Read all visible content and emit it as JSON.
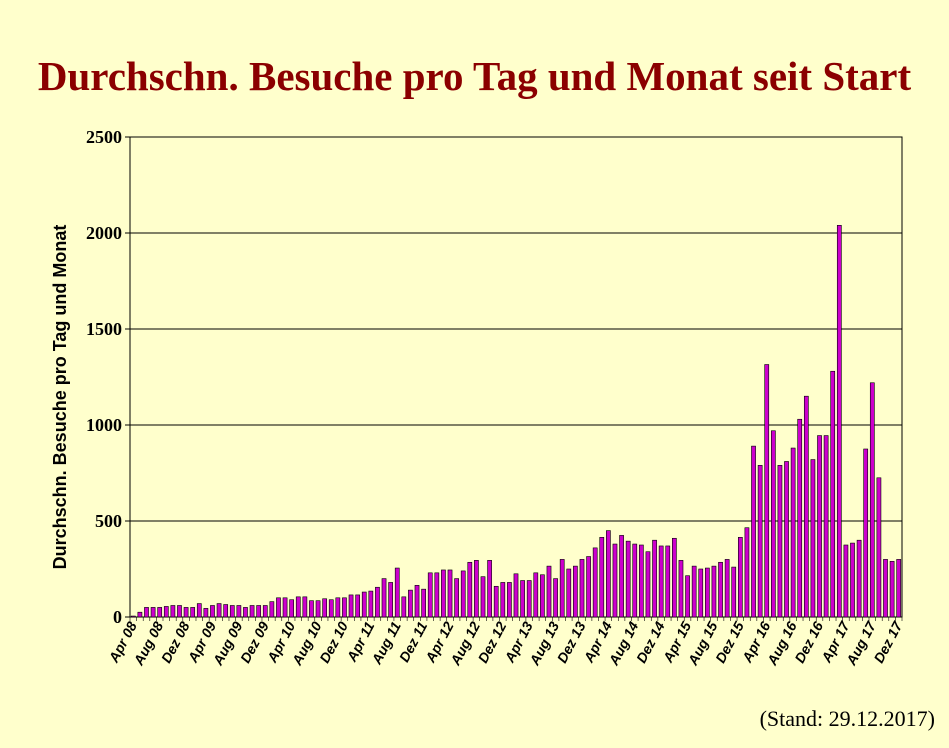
{
  "title": "Durchschn. Besuche pro Tag und Monat seit Start",
  "footnote": "(Stand: 29.12.2017)",
  "chart_data": {
    "type": "bar",
    "title": "Durchschn. Besuche pro Tag und Monat seit Start",
    "xlabel": "",
    "ylabel": "Durchschn. Besuche pro Tag und Monat",
    "ylim": [
      0,
      2500
    ],
    "yticks": [
      0,
      500,
      1000,
      1500,
      2000,
      2500
    ],
    "grid": true,
    "legend": "none",
    "bar_color": "#CC00CC",
    "xtick_labels": [
      "Apr 08",
      "Aug 08",
      "Dez 08",
      "Apr 09",
      "Aug 09",
      "Dez 09",
      "Apr 10",
      "Aug 10",
      "Dez 10",
      "Apr 11",
      "Aug 11",
      "Dez 11",
      "Apr 12",
      "Aug 12",
      "Dez 12",
      "Apr 13",
      "Aug 13",
      "Dez 13",
      "Apr 14",
      "Aug 14",
      "Dez 14",
      "Apr 15",
      "Aug 15",
      "Dez 15",
      "Apr 16",
      "Aug 16",
      "Dez 16",
      "Apr 17",
      "Aug 17",
      "Dez 17"
    ],
    "xtick_step": 4,
    "values": [
      5,
      25,
      50,
      50,
      50,
      55,
      60,
      60,
      50,
      50,
      70,
      45,
      60,
      70,
      65,
      60,
      60,
      50,
      60,
      60,
      60,
      80,
      100,
      100,
      90,
      105,
      105,
      85,
      85,
      95,
      90,
      100,
      100,
      115,
      115,
      130,
      135,
      155,
      200,
      180,
      255,
      105,
      140,
      165,
      145,
      230,
      230,
      245,
      245,
      200,
      240,
      285,
      295,
      210,
      295,
      160,
      180,
      180,
      225,
      190,
      190,
      230,
      220,
      265,
      200,
      300,
      250,
      265,
      300,
      315,
      360,
      415,
      450,
      380,
      425,
      395,
      380,
      375,
      340,
      400,
      370,
      370,
      410,
      295,
      215,
      265,
      250,
      255,
      265,
      285,
      300,
      260,
      415,
      465,
      890,
      790,
      1315,
      970,
      790,
      810,
      880,
      1030,
      1150,
      820,
      945,
      945,
      1280,
      2040,
      375,
      385,
      400,
      875,
      1220,
      725,
      300,
      290,
      300
    ]
  }
}
